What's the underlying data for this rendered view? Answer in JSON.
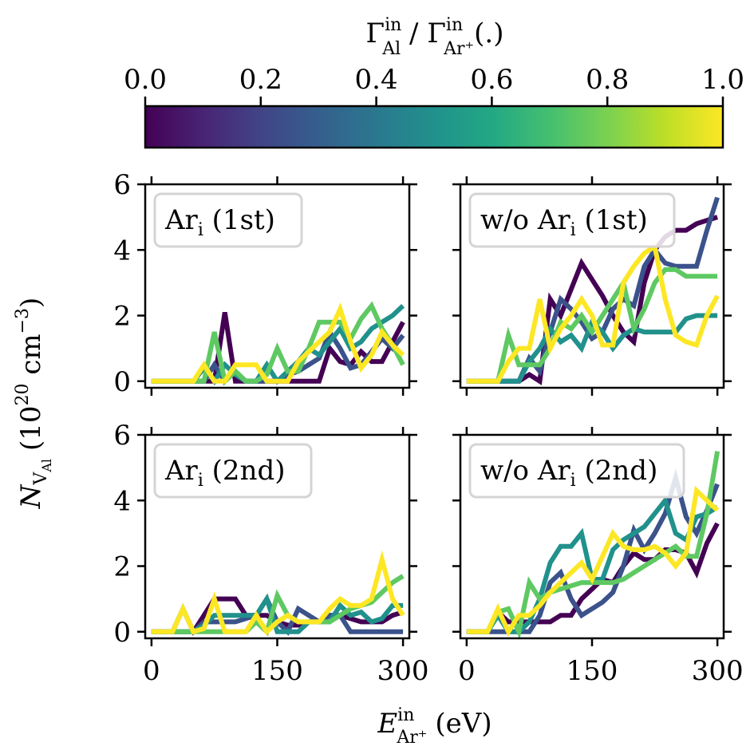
{
  "colorbar": {
    "label_main": "Γ",
    "label_sup1": "in",
    "label_sub1": "Al",
    "label_sep": " / ",
    "label_main2": "Γ",
    "label_sup2": "in",
    "label_sub2": "Ar⁺",
    "label_suffix": "(.)",
    "ticks": [
      "0.0",
      "0.2",
      "0.4",
      "0.6",
      "0.8",
      "1.0"
    ],
    "colormap": "viridis",
    "range": [
      0.0,
      1.0
    ]
  },
  "ylabel": {
    "main": "N",
    "sub": "V",
    "subsub": "Al",
    "unit_open": "(10",
    "unit_exp": "20",
    "unit_mid": " cm",
    "unit_exp2": "−3",
    "unit_close": ")"
  },
  "xlabel": {
    "main": "E",
    "sup": "in",
    "sub": "Ar⁺",
    "unit": "(eV)"
  },
  "series_colors": {
    "0.0": "#440154",
    "0.25": "#3b528b",
    "0.5": "#21918c",
    "0.75": "#5ec962",
    "1.0": "#fde725"
  },
  "chart_data": [
    {
      "type": "line",
      "panel": "top-left",
      "legend": {
        "text": "Ar",
        "sub": "i",
        "suffix": " (1st)"
      },
      "xlim": [
        -7.5,
        307.5
      ],
      "ylim": [
        -0.2,
        6
      ],
      "xticks": [
        0,
        150,
        300
      ],
      "yticks": [
        0,
        2,
        4,
        6
      ],
      "x": [
        0,
        12.5,
        25,
        37.5,
        50,
        62.5,
        75,
        87.5,
        100,
        112.5,
        125,
        137.5,
        150,
        162.5,
        175,
        187.5,
        200,
        212.5,
        225,
        237.5,
        250,
        262.5,
        275,
        287.5,
        300
      ],
      "series": [
        {
          "fraction": 0.0,
          "values": [
            0,
            0,
            0,
            0,
            0,
            0,
            0,
            2.1,
            0,
            0,
            0,
            0,
            0,
            0,
            0,
            0,
            0,
            1.0,
            0.6,
            0.5,
            0.9,
            0.6,
            0.6,
            1.2,
            1.8
          ]
        },
        {
          "fraction": 0.25,
          "values": [
            0,
            0,
            0,
            0,
            0,
            0,
            0.5,
            0,
            0.3,
            0,
            0,
            0,
            0,
            0.2,
            0.3,
            0.5,
            0.7,
            1.5,
            1.0,
            0.4,
            0.5,
            0.9,
            1.3,
            1.0,
            1.4
          ]
        },
        {
          "fraction": 0.5,
          "values": [
            0,
            0,
            0,
            0,
            0,
            0.4,
            0,
            0.5,
            0.2,
            0,
            0,
            0.5,
            0,
            0.3,
            0.6,
            1.0,
            0.8,
            1.2,
            1.6,
            1.0,
            1.2,
            1.6,
            1.8,
            2.0,
            2.3
          ]
        },
        {
          "fraction": 0.75,
          "values": [
            0,
            0,
            0,
            0,
            0,
            0,
            1.5,
            0,
            0.3,
            0,
            0,
            0.2,
            1.0,
            0.3,
            0.3,
            1.0,
            1.8,
            1.8,
            1.8,
            1.3,
            1.9,
            2.3,
            1.6,
            1.1,
            0.5
          ]
        },
        {
          "fraction": 1.0,
          "values": [
            0,
            0,
            0,
            0,
            0,
            0.5,
            0,
            0,
            0.5,
            0.5,
            0.5,
            0,
            0,
            0,
            0.6,
            0.9,
            1.2,
            1.5,
            2.2,
            1.2,
            0.4,
            0.8,
            1.5,
            1.1,
            0.8
          ]
        }
      ]
    },
    {
      "type": "line",
      "panel": "top-right",
      "legend": {
        "text": "w/o Ar",
        "sub": "i",
        "suffix": " (1st)"
      },
      "xlim": [
        -7.5,
        307.5
      ],
      "ylim": [
        -0.2,
        6
      ],
      "xticks": [
        0,
        150,
        300
      ],
      "yticks": [
        0,
        2,
        4,
        6
      ],
      "x": [
        0,
        12.5,
        25,
        37.5,
        50,
        62.5,
        75,
        87.5,
        100,
        112.5,
        125,
        137.5,
        150,
        162.5,
        175,
        187.5,
        200,
        212.5,
        225,
        237.5,
        250,
        262.5,
        275,
        287.5,
        300
      ],
      "series": [
        {
          "fraction": 0.0,
          "values": [
            0,
            0,
            0,
            0,
            0,
            0,
            0.2,
            0,
            2.5,
            2.0,
            2.8,
            3.6,
            3.1,
            2.6,
            2.0,
            1.5,
            1.2,
            3.0,
            4.0,
            4.4,
            4.6,
            4.6,
            4.8,
            4.9,
            5.0
          ]
        },
        {
          "fraction": 0.25,
          "values": [
            0,
            0,
            0,
            0,
            0,
            0,
            0.7,
            0.3,
            1.5,
            2.5,
            2.2,
            1.8,
            1.3,
            1.5,
            2.2,
            2.5,
            2.3,
            3.5,
            4.0,
            3.6,
            3.5,
            3.5,
            3.5,
            4.6,
            5.6
          ]
        },
        {
          "fraction": 0.5,
          "values": [
            0,
            0,
            0,
            0,
            0,
            0,
            0.6,
            1.0,
            1.6,
            1.2,
            1.4,
            1.0,
            1.8,
            1.5,
            1.0,
            1.4,
            1.6,
            1.5,
            1.5,
            1.5,
            1.5,
            1.9,
            2.0,
            2.0,
            2.0
          ]
        },
        {
          "fraction": 0.75,
          "values": [
            0,
            0,
            0,
            0,
            1.4,
            0.5,
            0.5,
            0.5,
            1.0,
            1.8,
            1.6,
            2.0,
            1.5,
            2.0,
            2.5,
            3.0,
            1.6,
            2.2,
            3.0,
            3.4,
            3.4,
            3.2,
            3.2,
            3.2,
            3.2
          ]
        },
        {
          "fraction": 1.0,
          "values": [
            0,
            0,
            0,
            0,
            0.6,
            1.0,
            1.0,
            2.5,
            1.0,
            1.6,
            2.0,
            2.5,
            2.0,
            1.1,
            1.1,
            3.0,
            3.5,
            3.9,
            4.1,
            2.5,
            1.4,
            1.2,
            1.1,
            2.0,
            2.6
          ]
        }
      ]
    },
    {
      "type": "line",
      "panel": "bottom-left",
      "legend": {
        "text": "Ar",
        "sub": "i",
        "suffix": " (2nd)"
      },
      "xlim": [
        -7.5,
        307.5
      ],
      "ylim": [
        -0.2,
        6
      ],
      "xticks": [
        0,
        150,
        300
      ],
      "yticks": [
        0,
        2,
        4,
        6
      ],
      "x": [
        0,
        12.5,
        25,
        37.5,
        50,
        62.5,
        75,
        87.5,
        100,
        112.5,
        125,
        137.5,
        150,
        162.5,
        175,
        187.5,
        200,
        212.5,
        225,
        237.5,
        250,
        262.5,
        275,
        287.5,
        300
      ],
      "series": [
        {
          "fraction": 0.0,
          "values": [
            0,
            0,
            0,
            0,
            0,
            0.5,
            1.0,
            1.0,
            1.0,
            0.5,
            0.5,
            0.5,
            0.3,
            0.2,
            0.2,
            0.3,
            0.3,
            0.5,
            0.5,
            0.4,
            0.3,
            0.3,
            0.3,
            0.5,
            0.6
          ]
        },
        {
          "fraction": 0.25,
          "values": [
            0,
            0,
            0,
            0.7,
            0,
            0.3,
            0.3,
            0.3,
            0.3,
            0.4,
            0.5,
            1.0,
            0.3,
            0,
            0.7,
            0.5,
            0.3,
            0.5,
            0.5,
            0,
            0,
            0,
            0,
            0,
            0
          ]
        },
        {
          "fraction": 0.5,
          "values": [
            0,
            0,
            0,
            0,
            0,
            0.2,
            0.5,
            0.5,
            0.5,
            0.5,
            0.5,
            1.0,
            0,
            0,
            0,
            0.3,
            0.3,
            0.3,
            0.8,
            0.5,
            0.6,
            0.3,
            0.4,
            0.8,
            0.8
          ]
        },
        {
          "fraction": 0.75,
          "values": [
            0,
            0,
            0,
            0,
            0,
            0,
            0,
            0,
            0,
            0,
            0.3,
            0,
            1.1,
            0.5,
            0.3,
            0.3,
            0.3,
            0.3,
            0.5,
            0.7,
            0.8,
            0.9,
            1.2,
            1.5,
            1.7
          ]
        },
        {
          "fraction": 1.0,
          "values": [
            0,
            0,
            0,
            0.7,
            0,
            0.1,
            1.0,
            0,
            0,
            0,
            0.5,
            0,
            0.3,
            0.5,
            0.3,
            0.3,
            0.3,
            0.7,
            1.0,
            0.8,
            0.8,
            1.0,
            2.2,
            1.0,
            0.5
          ]
        }
      ]
    },
    {
      "type": "line",
      "panel": "bottom-right",
      "legend": {
        "text": "w/o Ar",
        "sub": "i",
        "suffix": " (2nd)"
      },
      "xlim": [
        -7.5,
        307.5
      ],
      "ylim": [
        -0.2,
        6
      ],
      "xticks": [
        0,
        150,
        300
      ],
      "yticks": [
        0,
        2,
        4,
        6
      ],
      "x": [
        0,
        12.5,
        25,
        37.5,
        50,
        62.5,
        75,
        87.5,
        100,
        112.5,
        125,
        137.5,
        150,
        162.5,
        175,
        187.5,
        200,
        212.5,
        225,
        237.5,
        250,
        262.5,
        275,
        287.5,
        300
      ],
      "series": [
        {
          "fraction": 0.0,
          "values": [
            0,
            0,
            0,
            0.6,
            0.3,
            0.3,
            0.3,
            0.3,
            0.3,
            0.5,
            0.5,
            1.0,
            1.3,
            1.6,
            1.5,
            2.0,
            2.4,
            2.2,
            2.2,
            2.5,
            2.5,
            2.4,
            1.8,
            2.7,
            3.3
          ]
        },
        {
          "fraction": 0.25,
          "values": [
            0,
            0,
            0,
            0,
            0,
            0,
            0,
            0.5,
            1.5,
            1.8,
            1.0,
            0.5,
            0.7,
            0.9,
            1.2,
            2.0,
            3.1,
            2.5,
            3.0,
            3.6,
            4.7,
            3.5,
            3.0,
            3.7,
            4.5
          ]
        },
        {
          "fraction": 0.5,
          "values": [
            0,
            0,
            0,
            0.5,
            0,
            0,
            0.3,
            1.0,
            2.1,
            2.6,
            2.6,
            3.0,
            1.6,
            1.6,
            2.5,
            2.8,
            3.0,
            3.2,
            3.6,
            4.0,
            3.0,
            2.8,
            3.5,
            3.6,
            3.8
          ]
        },
        {
          "fraction": 0.75,
          "values": [
            0,
            0,
            0,
            0.6,
            0.7,
            0,
            1.5,
            1.0,
            1.2,
            1.3,
            1.4,
            1.5,
            1.5,
            1.5,
            1.5,
            1.6,
            1.8,
            2.0,
            2.2,
            2.4,
            2.6,
            2.3,
            2.3,
            3.6,
            5.5
          ]
        },
        {
          "fraction": 1.0,
          "values": [
            0,
            0,
            0,
            0.7,
            0,
            0.5,
            0.5,
            0.8,
            1.2,
            1.5,
            1.8,
            2.1,
            1.6,
            2.3,
            3.0,
            2.6,
            2.5,
            2.5,
            2.6,
            2.4,
            2.0,
            2.4,
            4.3,
            4.0,
            3.7
          ]
        }
      ]
    }
  ]
}
